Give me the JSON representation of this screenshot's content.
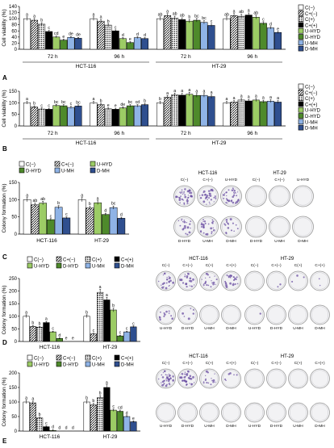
{
  "colors": {
    "C_neg": "#ffffff",
    "C_plus": "#555555",
    "C_neg_alt": "#222222",
    "C_pos": "#000000",
    "U_HYD": "#9ccc65",
    "D_HYD": "#4e8a2b",
    "U_MH": "#8fb3e6",
    "D_MH": "#2f4f8f"
  },
  "panels": {
    "A": {
      "letter": "A",
      "ylabel": "Cell viability (%)",
      "groups": [
        "72 h",
        "96 h",
        "72 h",
        "96 h"
      ],
      "cell_lines": [
        "HCT-116",
        "HT-29"
      ]
    },
    "B": {
      "letter": "B",
      "ylabel": "Cell viability (%)",
      "groups": [
        "72 h",
        "96 h",
        "72 h",
        "96 h"
      ],
      "cell_lines": [
        "HCT-116",
        "HT-29"
      ]
    },
    "C": {
      "letter": "C",
      "ylabel": "Colony formation (%)",
      "groups": [
        "HCT-116",
        "HT-29"
      ]
    },
    "D": {
      "letter": "D",
      "ylabel": "Colony formation (%)",
      "groups": [
        "HCT-116",
        "HT-29"
      ]
    },
    "E": {
      "letter": "E",
      "ylabel": "Colony formation (%)",
      "groups": [
        "HCT-116",
        "HT-29"
      ]
    }
  },
  "legends": {
    "ab": [
      "C(−)",
      "C+(−)",
      "C(+)",
      "C+(+)",
      "U-HYD",
      "D-HYD",
      "U-MH",
      "D-MH"
    ],
    "c": [
      "C(−)",
      "C+(−)",
      "U-HYD",
      "D-HYD",
      "U-MH",
      "D-MH"
    ],
    "de": [
      "C(−)",
      "C+(−)",
      "C(+)",
      "C+(+)",
      "U-HYD",
      "D-HYD",
      "U-MH",
      "D-MH"
    ]
  },
  "plates": {
    "C": {
      "left": {
        "title": "HCT-116",
        "top": [
          "C(−)",
          "C+(−)",
          "U-HYD"
        ],
        "bottom": [
          "D-HYD",
          "U-MH",
          "D-MH"
        ]
      },
      "right": {
        "title": "HT-29",
        "top": [
          "C(−)",
          "C+(−)",
          "U-HYD"
        ],
        "bottom": [
          "D-HYD",
          "U-MH",
          "D-MH"
        ]
      }
    },
    "D": {
      "left": {
        "title": "HCT-116",
        "top": [
          "C(−)",
          "C+(−)",
          "C(+)",
          "C+(+)"
        ],
        "bottom": [
          "U-HYD",
          "D-HYD",
          "U-MH",
          "D-MH"
        ]
      },
      "right": {
        "title": "HT-29",
        "top": [
          "C(−)",
          "C+(−)",
          "C(+)",
          "C+(+)"
        ],
        "bottom": [
          "U-HYD",
          "D-HYD",
          "U-MH",
          "D-MH"
        ]
      }
    },
    "E": {
      "left": {
        "title": "HCT-116",
        "top": [
          "C(−)",
          "C+(−)",
          "C(+)",
          "C+(+)"
        ],
        "bottom": [
          "U-HYD",
          "D-HYD",
          "U-MH",
          "D-MH"
        ]
      },
      "right": {
        "title": "HT-29",
        "top": [
          "C(−)",
          "C+(−)",
          "C(+)",
          "C+(+)"
        ],
        "bottom": [
          "U-HYD",
          "D-HYD",
          "U-MH",
          "D-MH"
        ]
      }
    }
  },
  "chart_data": [
    {
      "id": "A",
      "type": "bar",
      "ylabel": "Cell viability (%)",
      "ylim": [
        0,
        140
      ],
      "yticks": [
        0,
        20,
        40,
        60,
        80,
        100,
        120,
        140
      ],
      "categories": [
        "HCT-116 72 h",
        "HCT-116 96 h",
        "HT-29 72 h",
        "HT-29 96 h"
      ],
      "series": [
        {
          "name": "C(−)",
          "values": [
            100,
            100,
            100,
            100
          ],
          "letters": [
            "a",
            "a",
            "ab",
            "ab"
          ]
        },
        {
          "name": "C+(−)",
          "values": [
            95,
            92,
            110,
            110
          ],
          "letters": [
            "a",
            "a",
            "a",
            "a"
          ]
        },
        {
          "name": "C(+)",
          "values": [
            82,
            79,
            102,
            108
          ],
          "letters": [
            "b",
            "b",
            "ab",
            "ab"
          ]
        },
        {
          "name": "C+(+)",
          "values": [
            58,
            60,
            97,
            112
          ],
          "letters": [
            "c",
            "c",
            "ab",
            "a"
          ]
        },
        {
          "name": "U-HYD",
          "values": [
            40,
            35,
            92,
            105
          ],
          "letters": [
            "cd",
            "d",
            "b",
            "ab"
          ]
        },
        {
          "name": "D-HYD",
          "values": [
            30,
            22,
            95,
            85
          ],
          "letters": [
            "e",
            "e",
            "bc",
            "c"
          ]
        },
        {
          "name": "U-MH",
          "values": [
            39,
            38,
            88,
            70
          ],
          "letters": [
            "de",
            "d",
            "bc",
            "d"
          ]
        },
        {
          "name": "D-MH",
          "values": [
            36,
            35,
            78,
            55
          ],
          "letters": [
            "de",
            "d",
            "c",
            "e"
          ]
        }
      ]
    },
    {
      "id": "B",
      "type": "bar",
      "ylabel": "Cell viability (%)",
      "ylim": [
        0,
        150
      ],
      "yticks": [
        0,
        50,
        100,
        150
      ],
      "categories": [
        "HCT-116 72 h",
        "HCT-116 96 h",
        "HT-29 72 h",
        "HT-29 96 h"
      ],
      "series": [
        {
          "name": "C(−)",
          "values": [
            100,
            100,
            100,
            100
          ],
          "letters": [
            "a",
            "a",
            "b",
            "a"
          ]
        },
        {
          "name": "C+(−)",
          "values": [
            82,
            92,
            124,
            103
          ],
          "letters": [
            "b",
            "b",
            "a",
            "a"
          ]
        },
        {
          "name": "C(+)",
          "values": [
            73,
            74,
            134,
            112
          ],
          "letters": [
            "c",
            "e",
            "a",
            "a"
          ]
        },
        {
          "name": "C+(+)",
          "values": [
            72,
            72,
            133,
            108
          ],
          "letters": [
            "c",
            "e",
            "a",
            "a"
          ]
        },
        {
          "name": "U-HYD",
          "values": [
            88,
            78,
            137,
            112
          ],
          "letters": [
            "bc",
            "de",
            "a",
            "a"
          ]
        },
        {
          "name": "D-HYD",
          "values": [
            87,
            87,
            132,
            105
          ],
          "letters": [
            "bc",
            "bc",
            "a",
            "a"
          ]
        },
        {
          "name": "U-MH",
          "values": [
            80,
            87,
            132,
            107
          ],
          "letters": [
            "c",
            "cd",
            "a",
            "a"
          ]
        },
        {
          "name": "D-MH",
          "values": [
            86,
            92,
            127,
            103
          ],
          "letters": [
            "bc",
            "b",
            "a",
            "a"
          ]
        }
      ]
    },
    {
      "id": "C",
      "type": "bar",
      "ylabel": "Colony formation (%)",
      "ylim": [
        0,
        150
      ],
      "yticks": [
        0,
        50,
        100,
        150
      ],
      "categories": [
        "HCT-116",
        "HT-29"
      ],
      "series": [
        {
          "name": "C(−)",
          "values": [
            100,
            100
          ],
          "letters": [
            "a",
            "a"
          ]
        },
        {
          "name": "C+(−)",
          "values": [
            85,
            76
          ],
          "letters": [
            "ab",
            "b"
          ]
        },
        {
          "name": "U-HYD",
          "values": [
            90,
            91
          ],
          "letters": [
            "ab",
            "a"
          ]
        },
        {
          "name": "D-HYD",
          "values": [
            42,
            57
          ],
          "letters": [
            "c",
            "d"
          ]
        },
        {
          "name": "U-MH",
          "values": [
            78,
            77
          ],
          "letters": [
            "b",
            "bc"
          ]
        },
        {
          "name": "D-MH",
          "values": [
            47,
            46
          ],
          "letters": [
            "c",
            "d"
          ]
        }
      ]
    },
    {
      "id": "D",
      "type": "bar",
      "ylabel": "Colony formation (%)",
      "ylim": [
        0,
        250
      ],
      "yticks": [
        0,
        50,
        100,
        150,
        200,
        250
      ],
      "categories": [
        "HCT-116",
        "HT-29"
      ],
      "series": [
        {
          "name": "C(−)",
          "values": [
            100,
            100
          ],
          "letters": [
            "a",
            "b"
          ]
        },
        {
          "name": "C+(−)",
          "values": [
            60,
            30
          ],
          "letters": [
            "b",
            "c"
          ]
        },
        {
          "name": "C(+)",
          "values": [
            57,
            195
          ],
          "letters": [
            "b",
            "a"
          ]
        },
        {
          "name": "C+(+)",
          "values": [
            75,
            165
          ],
          "letters": [
            "a",
            "a"
          ]
        },
        {
          "name": "U-HYD",
          "values": [
            38,
            125
          ],
          "letters": [
            "c",
            "b"
          ]
        },
        {
          "name": "D-HYD",
          "values": [
            12,
            22
          ],
          "letters": [
            "d",
            "c"
          ]
        },
        {
          "name": "U-MH",
          "values": [
            0,
            38
          ],
          "letters": [
            "e",
            "c"
          ]
        },
        {
          "name": "D-MH",
          "values": [
            0,
            58
          ],
          "letters": [
            "e",
            "c"
          ]
        }
      ]
    },
    {
      "id": "E",
      "type": "bar",
      "ylabel": "Colony formation (%)",
      "ylim": [
        0,
        200
      ],
      "yticks": [
        0,
        50,
        100,
        150,
        200
      ],
      "categories": [
        "HCT-116",
        "HT-29"
      ],
      "series": [
        {
          "name": "C(−)",
          "values": [
            100,
            100
          ],
          "letters": [
            "a",
            "b"
          ]
        },
        {
          "name": "C+(−)",
          "values": [
            97,
            90
          ],
          "letters": [
            "a",
            "b"
          ]
        },
        {
          "name": "C(+)",
          "values": [
            45,
            115
          ],
          "letters": [
            "b",
            "b"
          ]
        },
        {
          "name": "C+(+)",
          "values": [
            15,
            150
          ],
          "letters": [
            "c",
            "a"
          ]
        },
        {
          "name": "U-HYD",
          "values": [
            2,
            72
          ],
          "letters": [
            "d",
            "c"
          ]
        },
        {
          "name": "D-HYD",
          "values": [
            0,
            68
          ],
          "letters": [
            "d",
            "cd"
          ]
        },
        {
          "name": "U-MH",
          "values": [
            0,
            50
          ],
          "letters": [
            "d",
            "d"
          ]
        },
        {
          "name": "D-MH",
          "values": [
            0,
            32
          ],
          "letters": [
            "d",
            "e"
          ]
        }
      ]
    }
  ]
}
